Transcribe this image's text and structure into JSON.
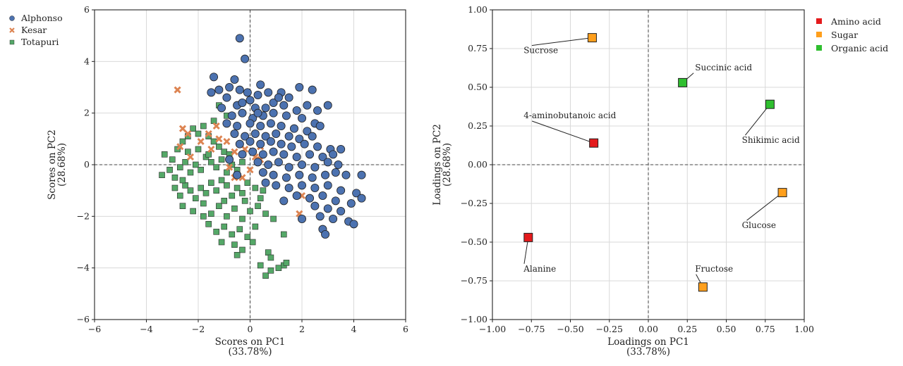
{
  "chart_data": [
    {
      "type": "scatter",
      "title": "",
      "xlabel": "Scores on PC1",
      "xlabel_sub": "(33.78%)",
      "ylabel": "Scores on PC2",
      "ylabel_sub": "(28.68%)",
      "xlim": [
        -6,
        6
      ],
      "ylim": [
        -6,
        6
      ],
      "xticks": [
        -6,
        -4,
        -2,
        0,
        2,
        4,
        6
      ],
      "yticks": [
        -6,
        -4,
        -2,
        0,
        2,
        4,
        6
      ],
      "xtick_labels": [
        "−6",
        "−4",
        "−2",
        "0",
        "2",
        "4",
        "6"
      ],
      "ytick_labels": [
        "−6",
        "−4",
        "−2",
        "0",
        "2",
        "4",
        "6"
      ],
      "grid": true,
      "legend_position": "outside-top-left",
      "series": [
        {
          "name": "Alphonso",
          "marker": "circle",
          "color": "#4c72b0",
          "points": [
            [
              -0.4,
              4.9
            ],
            [
              -0.2,
              4.1
            ],
            [
              -1.4,
              3.4
            ],
            [
              -0.6,
              3.3
            ],
            [
              0.4,
              3.1
            ],
            [
              1.9,
              3.0
            ],
            [
              2.4,
              2.9
            ],
            [
              -1.5,
              2.8
            ],
            [
              -1.2,
              2.9
            ],
            [
              -0.8,
              3.0
            ],
            [
              -0.4,
              2.9
            ],
            [
              -0.1,
              2.8
            ],
            [
              0.3,
              2.7
            ],
            [
              0.7,
              2.8
            ],
            [
              1.2,
              2.8
            ],
            [
              1.5,
              2.6
            ],
            [
              2.2,
              2.3
            ],
            [
              3.0,
              2.3
            ],
            [
              -0.9,
              2.6
            ],
            [
              0.0,
              2.5
            ],
            [
              0.9,
              2.4
            ],
            [
              -1.1,
              2.2
            ],
            [
              -0.5,
              2.3
            ],
            [
              0.2,
              2.2
            ],
            [
              0.6,
              2.2
            ],
            [
              1.3,
              2.3
            ],
            [
              1.8,
              2.1
            ],
            [
              2.6,
              2.1
            ],
            [
              -0.7,
              1.9
            ],
            [
              -0.3,
              2.0
            ],
            [
              0.1,
              1.8
            ],
            [
              0.5,
              1.9
            ],
            [
              0.9,
              2.0
            ],
            [
              1.4,
              1.9
            ],
            [
              2.0,
              1.8
            ],
            [
              2.5,
              1.6
            ],
            [
              -0.9,
              1.6
            ],
            [
              -0.5,
              1.5
            ],
            [
              0.0,
              1.6
            ],
            [
              0.4,
              1.5
            ],
            [
              0.8,
              1.6
            ],
            [
              1.2,
              1.5
            ],
            [
              1.7,
              1.4
            ],
            [
              2.2,
              1.3
            ],
            [
              2.7,
              1.5
            ],
            [
              -0.6,
              1.2
            ],
            [
              -0.2,
              1.1
            ],
            [
              0.2,
              1.2
            ],
            [
              0.6,
              1.1
            ],
            [
              1.0,
              1.2
            ],
            [
              1.5,
              1.1
            ],
            [
              1.9,
              1.0
            ],
            [
              2.4,
              1.1
            ],
            [
              -0.4,
              0.8
            ],
            [
              0.0,
              0.9
            ],
            [
              0.4,
              0.8
            ],
            [
              0.8,
              0.9
            ],
            [
              1.2,
              0.8
            ],
            [
              1.6,
              0.7
            ],
            [
              2.1,
              0.8
            ],
            [
              2.6,
              0.7
            ],
            [
              3.1,
              0.6
            ],
            [
              -0.3,
              0.4
            ],
            [
              0.1,
              0.5
            ],
            [
              0.5,
              0.4
            ],
            [
              0.9,
              0.5
            ],
            [
              1.3,
              0.4
            ],
            [
              1.8,
              0.3
            ],
            [
              2.3,
              0.4
            ],
            [
              2.8,
              0.3
            ],
            [
              3.2,
              0.4
            ],
            [
              3.5,
              0.6
            ],
            [
              0.3,
              0.1
            ],
            [
              0.7,
              0.0
            ],
            [
              1.1,
              0.1
            ],
            [
              1.5,
              -0.1
            ],
            [
              2.0,
              0.0
            ],
            [
              2.5,
              -0.1
            ],
            [
              3.0,
              0.1
            ],
            [
              3.4,
              0.0
            ],
            [
              4.3,
              -0.4
            ],
            [
              0.5,
              -0.3
            ],
            [
              0.9,
              -0.4
            ],
            [
              1.4,
              -0.5
            ],
            [
              1.9,
              -0.4
            ],
            [
              2.4,
              -0.5
            ],
            [
              2.9,
              -0.4
            ],
            [
              3.3,
              -0.3
            ],
            [
              3.7,
              -0.4
            ],
            [
              1.0,
              -0.8
            ],
            [
              1.5,
              -0.9
            ],
            [
              2.0,
              -0.8
            ],
            [
              2.5,
              -0.9
            ],
            [
              3.0,
              -0.8
            ],
            [
              3.5,
              -1.0
            ],
            [
              4.1,
              -1.1
            ],
            [
              1.8,
              -1.2
            ],
            [
              2.3,
              -1.3
            ],
            [
              2.8,
              -1.2
            ],
            [
              3.3,
              -1.4
            ],
            [
              4.3,
              -1.3
            ],
            [
              2.5,
              -1.6
            ],
            [
              3.0,
              -1.7
            ],
            [
              3.5,
              -1.8
            ],
            [
              3.9,
              -1.5
            ],
            [
              2.7,
              -2.0
            ],
            [
              3.2,
              -2.1
            ],
            [
              3.8,
              -2.2
            ],
            [
              4.0,
              -2.3
            ],
            [
              2.8,
              -2.5
            ],
            [
              2.9,
              -2.7
            ],
            [
              -0.3,
              2.4
            ],
            [
              0.3,
              2.0
            ],
            [
              1.1,
              2.6
            ],
            [
              -0.8,
              0.2
            ],
            [
              -0.5,
              -0.4
            ],
            [
              0.6,
              -0.7
            ],
            [
              1.3,
              -1.4
            ],
            [
              2.0,
              -2.1
            ]
          ]
        },
        {
          "name": "Kesar",
          "marker": "x",
          "color": "#dd8452",
          "points": [
            [
              -2.8,
              2.9
            ],
            [
              -2.6,
              1.4
            ],
            [
              -2.4,
              1.2
            ],
            [
              -1.6,
              1.2
            ],
            [
              -1.3,
              1.5
            ],
            [
              -1.2,
              1.0
            ],
            [
              -0.9,
              0.9
            ],
            [
              -2.7,
              0.7
            ],
            [
              -1.5,
              0.6
            ],
            [
              -0.2,
              0.6
            ],
            [
              0.4,
              0.7
            ],
            [
              -0.6,
              0.5
            ],
            [
              0.2,
              0.3
            ],
            [
              -0.8,
              -0.1
            ],
            [
              -0.6,
              -0.5
            ],
            [
              0.0,
              -0.2
            ],
            [
              1.9,
              -1.9
            ],
            [
              2.0,
              -1.2
            ],
            [
              -2.3,
              0.3
            ],
            [
              0.4,
              0.2
            ],
            [
              -0.3,
              -0.5
            ],
            [
              -1.9,
              0.9
            ]
          ]
        },
        {
          "name": "Totapuri",
          "marker": "square",
          "color": "#55a868",
          "points": [
            [
              -3.3,
              0.4
            ],
            [
              -3.0,
              0.2
            ],
            [
              -2.8,
              0.6
            ],
            [
              -2.6,
              0.9
            ],
            [
              -2.4,
              1.1
            ],
            [
              -2.2,
              1.4
            ],
            [
              -2.0,
              1.2
            ],
            [
              -1.8,
              1.5
            ],
            [
              -1.6,
              1.1
            ],
            [
              -1.4,
              0.9
            ],
            [
              -1.2,
              0.7
            ],
            [
              -1.0,
              0.5
            ],
            [
              -3.4,
              -0.4
            ],
            [
              -3.1,
              -0.2
            ],
            [
              -2.9,
              -0.5
            ],
            [
              -2.7,
              -0.1
            ],
            [
              -2.5,
              0.1
            ],
            [
              -2.3,
              -0.3
            ],
            [
              -2.1,
              0.0
            ],
            [
              -1.9,
              -0.2
            ],
            [
              -1.7,
              0.3
            ],
            [
              -1.5,
              0.1
            ],
            [
              -1.3,
              -0.1
            ],
            [
              -1.1,
              0.2
            ],
            [
              -0.9,
              -0.3
            ],
            [
              -0.7,
              0.0
            ],
            [
              -0.5,
              -0.2
            ],
            [
              -0.3,
              0.1
            ],
            [
              -2.9,
              -0.9
            ],
            [
              -2.7,
              -1.2
            ],
            [
              -2.5,
              -0.8
            ],
            [
              -2.3,
              -1.0
            ],
            [
              -2.1,
              -1.3
            ],
            [
              -1.9,
              -0.9
            ],
            [
              -1.7,
              -1.1
            ],
            [
              -1.5,
              -0.7
            ],
            [
              -1.3,
              -1.0
            ],
            [
              -1.1,
              -0.6
            ],
            [
              -0.9,
              -0.8
            ],
            [
              -0.7,
              -1.2
            ],
            [
              -0.5,
              -0.9
            ],
            [
              -0.3,
              -1.1
            ],
            [
              -0.1,
              -0.7
            ],
            [
              0.2,
              -0.9
            ],
            [
              0.5,
              -1.0
            ],
            [
              -2.6,
              -1.6
            ],
            [
              -2.2,
              -1.8
            ],
            [
              -1.8,
              -1.5
            ],
            [
              -1.5,
              -1.9
            ],
            [
              -1.2,
              -1.6
            ],
            [
              -0.9,
              -2.0
            ],
            [
              -0.6,
              -1.7
            ],
            [
              -0.3,
              -2.1
            ],
            [
              0.0,
              -1.8
            ],
            [
              0.3,
              -1.6
            ],
            [
              0.6,
              -1.9
            ],
            [
              -1.6,
              -2.3
            ],
            [
              -1.3,
              -2.6
            ],
            [
              -1.0,
              -2.4
            ],
            [
              -0.7,
              -2.7
            ],
            [
              -0.4,
              -2.5
            ],
            [
              -0.1,
              -2.8
            ],
            [
              0.2,
              -2.4
            ],
            [
              -0.6,
              -3.1
            ],
            [
              -0.3,
              -3.3
            ],
            [
              -0.5,
              -3.5
            ],
            [
              0.9,
              -2.1
            ],
            [
              1.3,
              -2.7
            ],
            [
              0.7,
              -3.4
            ],
            [
              0.8,
              -3.6
            ],
            [
              1.3,
              -3.9
            ],
            [
              1.4,
              -3.8
            ],
            [
              0.4,
              -3.9
            ],
            [
              0.6,
              -4.3
            ],
            [
              0.8,
              -4.1
            ],
            [
              1.1,
              -4.0
            ],
            [
              -1.2,
              2.3
            ],
            [
              -1.4,
              1.7
            ],
            [
              -0.9,
              1.9
            ],
            [
              -2.0,
              0.6
            ],
            [
              -1.6,
              0.4
            ],
            [
              -0.8,
              0.4
            ],
            [
              -2.6,
              -0.6
            ],
            [
              -1.0,
              -1.4
            ],
            [
              -0.2,
              -1.4
            ],
            [
              0.4,
              -1.3
            ],
            [
              -1.8,
              -2.0
            ],
            [
              -1.1,
              -3.0
            ],
            [
              0.1,
              -3.0
            ],
            [
              -2.4,
              0.5
            ]
          ]
        }
      ]
    },
    {
      "type": "scatter",
      "title": "",
      "xlabel": "Loadings on PC1",
      "xlabel_sub": "(33.78%)",
      "ylabel": "Loadings on PC2",
      "ylabel_sub": "(28.68%)",
      "xlim": [
        -1.0,
        1.0
      ],
      "ylim": [
        -1.0,
        1.0
      ],
      "xticks": [
        -1.0,
        -0.75,
        -0.5,
        -0.25,
        0.0,
        0.25,
        0.5,
        0.75,
        1.0
      ],
      "yticks": [
        -1.0,
        -0.75,
        -0.5,
        -0.25,
        0.0,
        0.25,
        0.5,
        0.75,
        1.0
      ],
      "xtick_labels": [
        "−1.00",
        "−0.75",
        "−0.50",
        "−0.25",
        "0.00",
        "0.25",
        "0.50",
        "0.75",
        "1.00"
      ],
      "ytick_labels": [
        "−1.00",
        "−0.75",
        "−0.50",
        "−0.25",
        "0.00",
        "0.25",
        "0.50",
        "0.75",
        "1.00"
      ],
      "grid": true,
      "legend_position": "outside-top-right",
      "legend": [
        {
          "name": "Amino acid",
          "color": "#e41a1c"
        },
        {
          "name": "Sugar",
          "color": "#ff9f1c"
        },
        {
          "name": "Organic acid",
          "color": "#2fbf2f"
        }
      ],
      "points": [
        {
          "label": "Sucrose",
          "group": "Sugar",
          "x": -0.36,
          "y": 0.82,
          "label_x": -0.8,
          "label_y": 0.72
        },
        {
          "label": "Succinic acid",
          "group": "Organic acid",
          "x": 0.22,
          "y": 0.53,
          "label_x": 0.3,
          "label_y": 0.61
        },
        {
          "label": "Shikimic acid",
          "group": "Organic acid",
          "x": 0.78,
          "y": 0.39,
          "label_x": 0.6,
          "label_y": 0.14
        },
        {
          "label": "4-aminobutanoic acid",
          "group": "Amino acid",
          "x": -0.35,
          "y": 0.14,
          "label_x": -0.8,
          "label_y": 0.3
        },
        {
          "label": "Glucose",
          "group": "Sugar",
          "x": 0.86,
          "y": -0.18,
          "label_x": 0.6,
          "label_y": -0.41
        },
        {
          "label": "Alanine",
          "group": "Amino acid",
          "x": -0.77,
          "y": -0.47,
          "label_x": -0.8,
          "label_y": -0.69
        },
        {
          "label": "Fructose",
          "group": "Sugar",
          "x": 0.35,
          "y": -0.79,
          "label_x": 0.3,
          "label_y": -0.69
        }
      ]
    }
  ]
}
